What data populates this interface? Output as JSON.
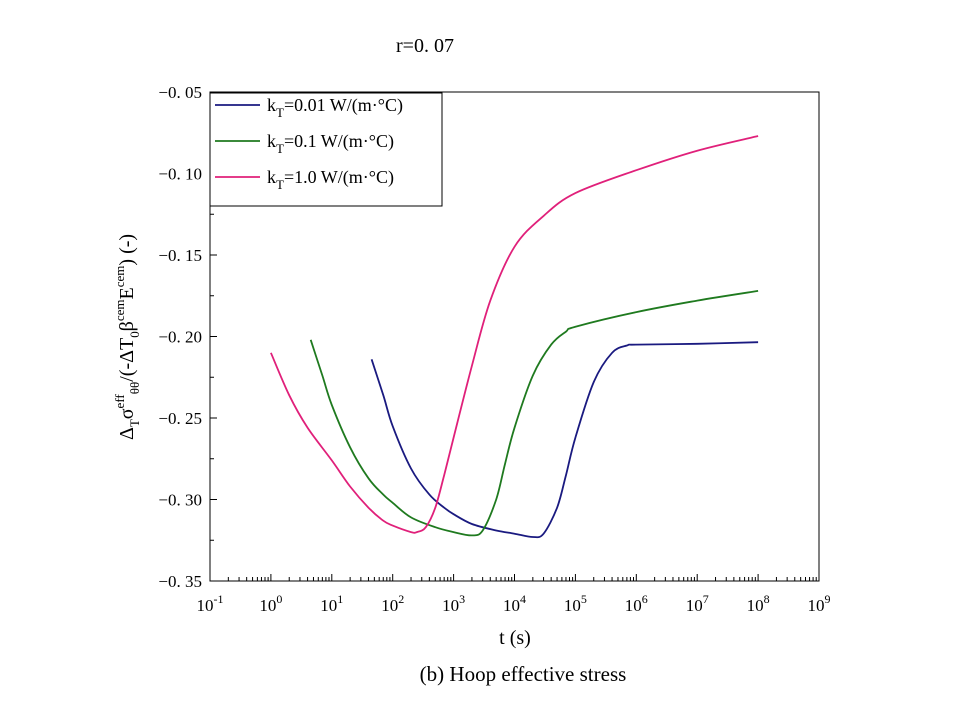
{
  "chart_data": {
    "type": "line",
    "title": "r=0. 07",
    "caption": "(b) Hoop effective stress",
    "xlabel": "t (s)",
    "ylabel": {
      "parts": [
        {
          "t": "Δ"
        },
        {
          "t": "T",
          "sub": true
        },
        {
          "t": "σ"
        },
        {
          "t": "eff",
          "sup": true
        },
        {
          "t": "θθ",
          "sub": true
        },
        {
          "t": "/(-ΔT"
        },
        {
          "t": "0",
          "sub": true
        },
        {
          "t": "β"
        },
        {
          "t": "cem",
          "sup": true
        },
        {
          "t": "E"
        },
        {
          "t": "cem",
          "sup": true
        },
        {
          "t": ") (-)"
        }
      ]
    },
    "x_scale": "log",
    "xlim": [
      0.1,
      1000000000
    ],
    "ylim": [
      -0.35,
      -0.05
    ],
    "x_ticks": [
      {
        "base": "10",
        "exp": "-1"
      },
      {
        "base": "10",
        "exp": "0"
      },
      {
        "base": "10",
        "exp": "1"
      },
      {
        "base": "10",
        "exp": "2"
      },
      {
        "base": "10",
        "exp": "3"
      },
      {
        "base": "10",
        "exp": "4"
      },
      {
        "base": "10",
        "exp": "5"
      },
      {
        "base": "10",
        "exp": "6"
      },
      {
        "base": "10",
        "exp": "7"
      },
      {
        "base": "10",
        "exp": "8"
      },
      {
        "base": "10",
        "exp": "9"
      }
    ],
    "y_ticks": [
      "−0. 35",
      "−0. 30",
      "−0. 25",
      "−0. 20",
      "−0. 15",
      "−0. 10",
      "−0. 05"
    ],
    "legend_position": "top-left",
    "series": [
      {
        "legend": {
          "base": "k",
          "sub": "T",
          "rest": "=0.01 W/(m·°C)"
        },
        "color": "#1a1a80",
        "points": [
          [
            45,
            -0.214
          ],
          [
            70,
            -0.236
          ],
          [
            100,
            -0.255
          ],
          [
            200,
            -0.281
          ],
          [
            400,
            -0.297
          ],
          [
            700,
            -0.305
          ],
          [
            1000,
            -0.309
          ],
          [
            2000,
            -0.315
          ],
          [
            5000,
            -0.319
          ],
          [
            10000,
            -0.321
          ],
          [
            20000,
            -0.323
          ],
          [
            30000,
            -0.321
          ],
          [
            50000,
            -0.305
          ],
          [
            70000,
            -0.285
          ],
          [
            100000,
            -0.262
          ],
          [
            200000,
            -0.228
          ],
          [
            400000,
            -0.21
          ],
          [
            700000,
            -0.2055
          ],
          [
            1000000,
            -0.205
          ],
          [
            10000000,
            -0.2045
          ],
          [
            100000000,
            -0.2035
          ]
        ]
      },
      {
        "legend": {
          "base": "k",
          "sub": "T",
          "rest": "=0.1 W/(m·°C)"
        },
        "color": "#1f7a1f",
        "points": [
          [
            4.5,
            -0.202
          ],
          [
            7,
            -0.224
          ],
          [
            10,
            -0.242
          ],
          [
            20,
            -0.268
          ],
          [
            40,
            -0.287
          ],
          [
            70,
            -0.297
          ],
          [
            100,
            -0.302
          ],
          [
            200,
            -0.311
          ],
          [
            500,
            -0.317
          ],
          [
            1000,
            -0.32
          ],
          [
            2000,
            -0.322
          ],
          [
            3000,
            -0.319
          ],
          [
            5000,
            -0.3
          ],
          [
            7000,
            -0.278
          ],
          [
            10000,
            -0.256
          ],
          [
            20000,
            -0.224
          ],
          [
            40000,
            -0.205
          ],
          [
            70000,
            -0.197
          ],
          [
            100000,
            -0.194
          ],
          [
            1000000,
            -0.185
          ],
          [
            10000000,
            -0.178
          ],
          [
            100000000,
            -0.172
          ]
        ]
      },
      {
        "legend": {
          "base": "k",
          "sub": "T",
          "rest": "=1.0 W/(m·°C)"
        },
        "color": "#e0207a",
        "points": [
          [
            1,
            -0.21
          ],
          [
            2,
            -0.236
          ],
          [
            4,
            -0.256
          ],
          [
            10,
            -0.276
          ],
          [
            20,
            -0.292
          ],
          [
            40,
            -0.305
          ],
          [
            70,
            -0.313
          ],
          [
            100,
            -0.316
          ],
          [
            200,
            -0.32
          ],
          [
            250,
            -0.32
          ],
          [
            350,
            -0.317
          ],
          [
            500,
            -0.305
          ],
          [
            700,
            -0.285
          ],
          [
            1000,
            -0.262
          ],
          [
            2000,
            -0.218
          ],
          [
            4000,
            -0.178
          ],
          [
            10000,
            -0.145
          ],
          [
            30000,
            -0.126
          ],
          [
            100000,
            -0.112
          ],
          [
            1000000,
            -0.098
          ],
          [
            10000000,
            -0.086
          ],
          [
            100000000,
            -0.077
          ]
        ]
      }
    ]
  }
}
